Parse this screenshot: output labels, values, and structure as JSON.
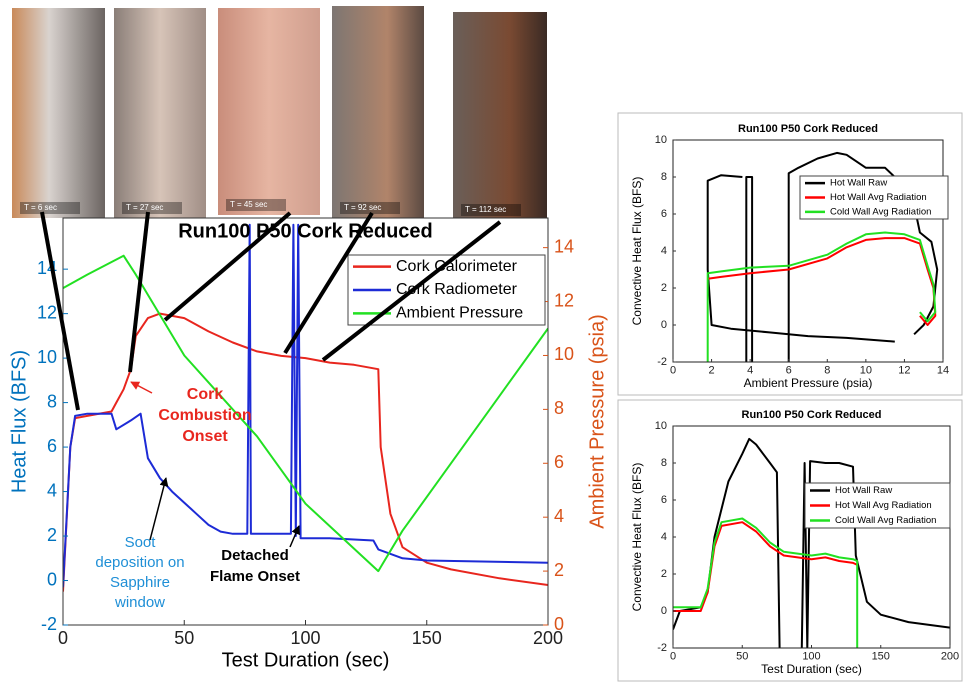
{
  "photos": [
    {
      "label": "T = 6 sec"
    },
    {
      "label": "T = 27 sec"
    },
    {
      "label": "T = 45 sec"
    },
    {
      "label": "T = 92 sec"
    },
    {
      "label": "T = 112 sec"
    }
  ],
  "chart_data": [
    {
      "type": "line",
      "title": "Run100 P50 Cork Reduced",
      "xlabel": "Test Duration (sec)",
      "ylabel": "Heat Flux (BFS)",
      "y2label": "Ambient Pressure (psia)",
      "ycolor": "#0072bd",
      "y2color": "#d95319",
      "xlim": [
        0,
        200
      ],
      "xticks": [
        0,
        50,
        100,
        150,
        200
      ],
      "ylim": [
        -2,
        16.3
      ],
      "yticks": [
        -2,
        0,
        2,
        4,
        6,
        8,
        10,
        12,
        14
      ],
      "y2lim": [
        0,
        15.1
      ],
      "y2ticks": [
        0,
        2,
        4,
        6,
        8,
        10,
        12,
        14
      ],
      "legend": "upper right",
      "series": [
        {
          "name": "Cork Calorimeter",
          "color": "#e8261e",
          "x": [
            0,
            3,
            5,
            10,
            20,
            22,
            25,
            28,
            30,
            35,
            40,
            50,
            60,
            70,
            80,
            90,
            100,
            110,
            120,
            130,
            131,
            135,
            140,
            150,
            160,
            180,
            200
          ],
          "values": [
            -0.5,
            6,
            7.3,
            7.4,
            7.6,
            8,
            8.6,
            9.5,
            11,
            11.8,
            12,
            11.8,
            11.2,
            10.7,
            10.3,
            10.1,
            10,
            9.8,
            9.7,
            9.5,
            6,
            3,
            1.5,
            0.8,
            0.5,
            0.1,
            -0.2
          ]
        },
        {
          "name": "Cork Radiometer",
          "color": "#1d2bd6",
          "x": [
            0,
            3,
            5,
            10,
            20,
            22,
            28,
            32,
            35,
            40,
            45,
            50,
            55,
            60,
            65,
            70,
            76,
            77,
            77.5,
            94,
            95,
            96,
            97,
            98,
            110,
            128,
            130,
            140,
            150,
            200
          ],
          "values": [
            -0.3,
            6,
            7.4,
            7.5,
            7.5,
            6.8,
            7.2,
            7.5,
            5.5,
            4.6,
            4,
            3.5,
            3,
            2.5,
            2.2,
            2.1,
            2.1,
            16,
            2.1,
            2.1,
            16,
            2,
            16,
            1.9,
            1.9,
            1.8,
            1.4,
            1,
            0.9,
            0.8
          ]
        },
        {
          "name": "Ambient Pressure",
          "color": "#22e022",
          "axis": "y2",
          "x": [
            0,
            10,
            25,
            30,
            50,
            80,
            100,
            130,
            140,
            160,
            180,
            200
          ],
          "values": [
            12.5,
            13,
            13.7,
            13,
            10,
            7,
            4.5,
            2,
            3.5,
            6,
            8.5,
            11
          ]
        }
      ],
      "annotations": [
        {
          "text": [
            "Cork",
            "Combustion",
            "Onset"
          ],
          "color": "#e8261e"
        },
        {
          "text": [
            "Soot",
            "deposition on",
            "Sapphire",
            "window"
          ],
          "color": "#1f8fd6"
        },
        {
          "text": [
            "Detached",
            "Flame Onset"
          ],
          "color": "#000000"
        }
      ]
    },
    {
      "type": "line",
      "title": "Run100 P50 Cork Reduced",
      "xlabel": "Ambient Pressure (psia)",
      "ylabel": "Convective Heat Flux (BFS)",
      "xlim": [
        0,
        14
      ],
      "xticks": [
        0,
        2,
        4,
        6,
        8,
        10,
        12,
        14
      ],
      "ylim": [
        -2,
        10
      ],
      "yticks": [
        -2,
        0,
        2,
        4,
        6,
        8,
        10
      ],
      "legend": "upper right",
      "series": [
        {
          "name": "Hot Wall Raw",
          "color": "#000000",
          "x": [
            12.5,
            13,
            13.5,
            13.7,
            13.4,
            12.8,
            12.5,
            12,
            11,
            10,
            9,
            8.5,
            7.5,
            6.5,
            6,
            6,
            null,
            4.1,
            4.1,
            3.8,
            3.8,
            null,
            3.6,
            2.5,
            1.8,
            1.8,
            2,
            3,
            5,
            7,
            9,
            11.5
          ],
          "values": [
            -0.5,
            0,
            1,
            3,
            4.5,
            5,
            6.5,
            7.5,
            8.5,
            8.5,
            9.2,
            9.3,
            9,
            8.5,
            8.2,
            -2,
            null,
            -2,
            8,
            8,
            -2,
            null,
            8,
            8.1,
            7.8,
            3,
            0,
            -0.2,
            -0.4,
            -0.6,
            -0.7,
            -0.9
          ]
        },
        {
          "name": "Hot Wall Avg Radiation",
          "color": "#ff0000",
          "x": [
            1.8,
            2.5,
            4,
            6,
            8,
            9,
            10,
            11,
            12,
            12.8,
            13.2,
            13.5,
            13.6,
            13.2,
            12.8
          ],
          "values": [
            2.5,
            2.6,
            2.8,
            3,
            3.6,
            4.2,
            4.6,
            4.7,
            4.7,
            4.4,
            3,
            2,
            0.5,
            0,
            0.5
          ]
        },
        {
          "name": "Cold Wall Avg Radiation",
          "color": "#22e022",
          "x": [
            1.8,
            1.8,
            2.5,
            4,
            6,
            8,
            9,
            10,
            11,
            12,
            12.8,
            13.2,
            13.5,
            13.6,
            13.2,
            12.8
          ],
          "values": [
            -2,
            2.8,
            2.9,
            3.1,
            3.2,
            3.8,
            4.4,
            4.9,
            5,
            4.9,
            4.6,
            3.2,
            2.2,
            0.7,
            0.2,
            0.7
          ]
        }
      ]
    },
    {
      "type": "line",
      "title": "Run100 P50 Cork Reduced",
      "xlabel": "Test Duration (sec)",
      "ylabel": "Convective Heat Flux (BFS)",
      "xlim": [
        0,
        200
      ],
      "xticks": [
        0,
        50,
        100,
        150,
        200
      ],
      "ylim": [
        -2,
        10
      ],
      "yticks": [
        -2,
        0,
        2,
        4,
        6,
        8,
        10
      ],
      "legend": "center right",
      "series": [
        {
          "name": "Hot Wall Raw",
          "color": "#000000",
          "x": [
            0,
            5,
            20,
            25,
            30,
            40,
            50,
            55,
            60,
            70,
            75,
            77,
            null,
            93,
            95,
            97,
            99,
            110,
            120,
            130,
            132,
            140,
            150,
            170,
            200
          ],
          "values": [
            -1,
            0,
            0.2,
            1,
            4,
            7,
            8.5,
            9.3,
            9,
            8,
            7.5,
            -2,
            null,
            -2,
            8,
            -2,
            8.1,
            8,
            8,
            7.8,
            3,
            0.5,
            -0.2,
            -0.6,
            -0.9
          ]
        },
        {
          "name": "Hot Wall Avg Radiation",
          "color": "#ff0000",
          "x": [
            0,
            20,
            25,
            30,
            35,
            50,
            60,
            70,
            80,
            100,
            110,
            120,
            130,
            133
          ],
          "values": [
            0,
            0,
            1,
            3.5,
            4.6,
            4.8,
            4.3,
            3.5,
            3,
            2.8,
            2.9,
            2.7,
            2.6,
            2.5
          ]
        },
        {
          "name": "Cold Wall Avg Radiation",
          "color": "#22e022",
          "x": [
            0,
            20,
            25,
            30,
            35,
            50,
            60,
            70,
            80,
            100,
            110,
            120,
            130,
            133,
            133
          ],
          "values": [
            0.2,
            0.2,
            1.2,
            3.7,
            4.8,
            5,
            4.5,
            3.7,
            3.2,
            3,
            3.1,
            2.9,
            2.8,
            2.7,
            -2
          ]
        }
      ]
    }
  ]
}
